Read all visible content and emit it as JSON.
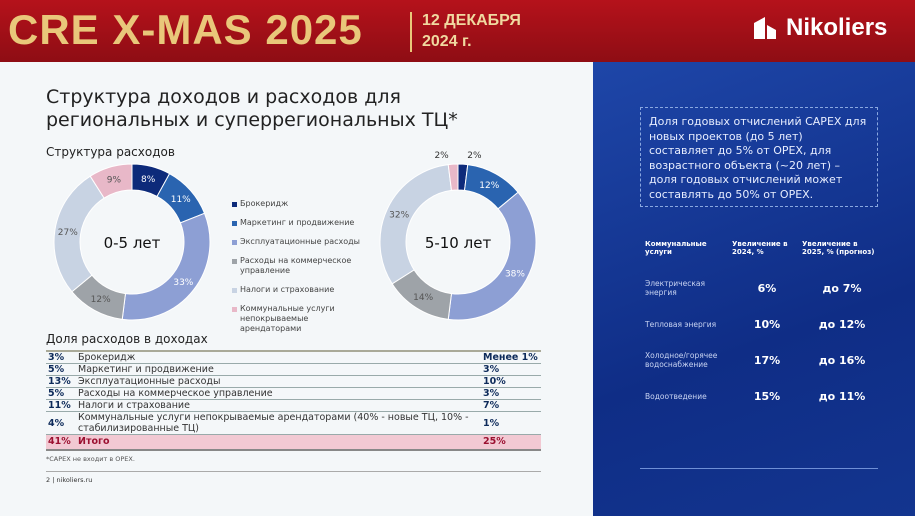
{
  "header": {
    "event_title": "CRE X-MAS 2025",
    "date_line1": "12 ДЕКАБРЯ",
    "date_line2": "2024 г.",
    "brand": "Nikoliers"
  },
  "slide": {
    "title_line1": "Структура доходов и расходов для",
    "title_line2": "региональных и суперрегиональных ТЦ*",
    "subtitle": "Структура расходов"
  },
  "chart_data": [
    {
      "type": "pie",
      "donut": true,
      "center_label": "0-5 лет",
      "categories": [
        "Брокеридж",
        "Маркетинг и продвижение",
        "Эксплуатационные расходы",
        "Расходы на коммерческое управление",
        "Налоги и страхование",
        "Коммунальные услуги непокрываемые арендаторами"
      ],
      "values": [
        8,
        11,
        33,
        12,
        27,
        9
      ],
      "labels": [
        "8%",
        "11%",
        "33%",
        "12%",
        "27%",
        "9%"
      ],
      "colors": [
        "#0d2a7a",
        "#2a64b0",
        "#8d9fd4",
        "#9ea3a8",
        "#c8d3e3",
        "#e8b8c8"
      ],
      "legend": "right"
    },
    {
      "type": "pie",
      "donut": true,
      "center_label": "5-10 лет",
      "categories": [
        "Брокеридж",
        "Маркетинг и продвижение",
        "Эксплуатационные расходы",
        "Расходы на коммерческое управление",
        "Налоги и страхование",
        "Коммунальные услуги непокрываемые арендаторами"
      ],
      "values": [
        2,
        12,
        38,
        14,
        32,
        2
      ],
      "labels": [
        "2%",
        "12%",
        "38%",
        "14%",
        "32%",
        "2%"
      ],
      "colors": [
        "#0d2a7a",
        "#2a64b0",
        "#8d9fd4",
        "#9ea3a8",
        "#c8d3e3",
        "#e8b8c8"
      ]
    }
  ],
  "legend": [
    "Брокеридж",
    "Маркетинг и продвижение",
    "Эксплуатационные расходы",
    "Расходы на коммерческое управление",
    "Налоги и страхование",
    "Коммунальные услуги непокрываемые арендаторами"
  ],
  "share": {
    "title": "Доля расходов в доходах",
    "rows": [
      {
        "left": "3%",
        "label": "Брокеридж",
        "right": "Менее 1%"
      },
      {
        "left": "5%",
        "label": "Маркетинг и продвижение",
        "right": "3%"
      },
      {
        "left": "13%",
        "label": "Эксплуатационные расходы",
        "right": "10%"
      },
      {
        "left": "5%",
        "label": "Расходы на коммерческое управление",
        "right": "3%"
      },
      {
        "left": "11%",
        "label": "Налоги и страхование",
        "right": "7%"
      },
      {
        "left": "4%",
        "label": "Коммунальные услуги непокрываемые арендаторами (40% - новые ТЦ, 10% - стабилизированные ТЦ)",
        "right": "1%"
      }
    ],
    "total": {
      "left": "41%",
      "label": "Итого",
      "right": "25%"
    },
    "note": "*CAPEX не входит в OPEX.",
    "footer": "2 | nikoliers.ru"
  },
  "capex_box": "Доля годовых отчислений CAPEX для новых проектов (до 5 лет) составляет до  5% от OPEX, для возрастного объекта (~20 лет) – доля годовых отчислений может составлять до 50% от OPEX.",
  "utilities": {
    "headers": [
      "Коммунальные услуги",
      "Увеличение в 2024, %",
      "Увеличение в 2025, % (прогноз)"
    ],
    "rows": [
      [
        "Электрическая энергия",
        "6%",
        "до 7%"
      ],
      [
        "Тепловая энергия",
        "10%",
        "до 12%"
      ],
      [
        "Холодное/горячее водоснабжение",
        "17%",
        "до 16%"
      ],
      [
        "Водоотведение",
        "15%",
        "до 11%"
      ]
    ]
  }
}
